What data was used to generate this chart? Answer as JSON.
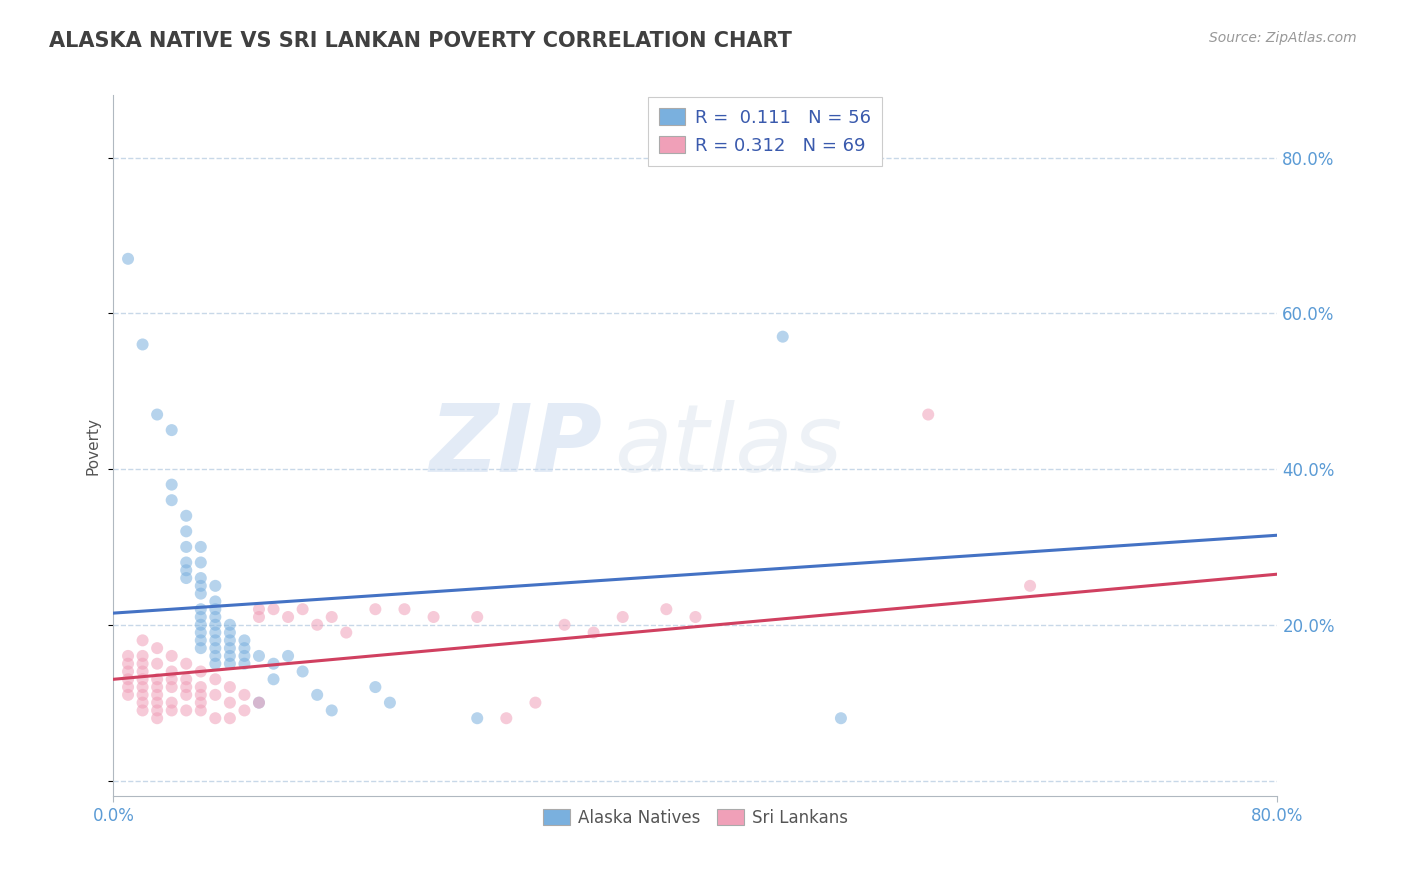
{
  "title": "ALASKA NATIVE VS SRI LANKAN POVERTY CORRELATION CHART",
  "source_text": "Source: ZipAtlas.com",
  "ylabel": "Poverty",
  "alaska_scatter": [
    [
      0.01,
      0.67
    ],
    [
      0.02,
      0.56
    ],
    [
      0.03,
      0.47
    ],
    [
      0.04,
      0.45
    ],
    [
      0.04,
      0.38
    ],
    [
      0.04,
      0.36
    ],
    [
      0.05,
      0.34
    ],
    [
      0.05,
      0.32
    ],
    [
      0.05,
      0.3
    ],
    [
      0.05,
      0.28
    ],
    [
      0.05,
      0.27
    ],
    [
      0.05,
      0.26
    ],
    [
      0.06,
      0.3
    ],
    [
      0.06,
      0.28
    ],
    [
      0.06,
      0.26
    ],
    [
      0.06,
      0.25
    ],
    [
      0.06,
      0.24
    ],
    [
      0.06,
      0.22
    ],
    [
      0.06,
      0.21
    ],
    [
      0.06,
      0.2
    ],
    [
      0.06,
      0.19
    ],
    [
      0.06,
      0.18
    ],
    [
      0.06,
      0.17
    ],
    [
      0.07,
      0.25
    ],
    [
      0.07,
      0.23
    ],
    [
      0.07,
      0.22
    ],
    [
      0.07,
      0.21
    ],
    [
      0.07,
      0.2
    ],
    [
      0.07,
      0.19
    ],
    [
      0.07,
      0.18
    ],
    [
      0.07,
      0.17
    ],
    [
      0.07,
      0.16
    ],
    [
      0.07,
      0.15
    ],
    [
      0.08,
      0.2
    ],
    [
      0.08,
      0.19
    ],
    [
      0.08,
      0.18
    ],
    [
      0.08,
      0.17
    ],
    [
      0.08,
      0.16
    ],
    [
      0.08,
      0.15
    ],
    [
      0.09,
      0.18
    ],
    [
      0.09,
      0.17
    ],
    [
      0.09,
      0.16
    ],
    [
      0.09,
      0.15
    ],
    [
      0.1,
      0.16
    ],
    [
      0.1,
      0.1
    ],
    [
      0.11,
      0.15
    ],
    [
      0.11,
      0.13
    ],
    [
      0.12,
      0.16
    ],
    [
      0.13,
      0.14
    ],
    [
      0.14,
      0.11
    ],
    [
      0.15,
      0.09
    ],
    [
      0.18,
      0.12
    ],
    [
      0.19,
      0.1
    ],
    [
      0.25,
      0.08
    ],
    [
      0.46,
      0.57
    ],
    [
      0.5,
      0.08
    ]
  ],
  "srilanka_scatter": [
    [
      0.01,
      0.16
    ],
    [
      0.01,
      0.15
    ],
    [
      0.01,
      0.14
    ],
    [
      0.01,
      0.13
    ],
    [
      0.01,
      0.12
    ],
    [
      0.01,
      0.11
    ],
    [
      0.02,
      0.18
    ],
    [
      0.02,
      0.16
    ],
    [
      0.02,
      0.15
    ],
    [
      0.02,
      0.14
    ],
    [
      0.02,
      0.13
    ],
    [
      0.02,
      0.12
    ],
    [
      0.02,
      0.11
    ],
    [
      0.02,
      0.1
    ],
    [
      0.02,
      0.09
    ],
    [
      0.03,
      0.17
    ],
    [
      0.03,
      0.15
    ],
    [
      0.03,
      0.13
    ],
    [
      0.03,
      0.12
    ],
    [
      0.03,
      0.11
    ],
    [
      0.03,
      0.1
    ],
    [
      0.03,
      0.09
    ],
    [
      0.03,
      0.08
    ],
    [
      0.04,
      0.16
    ],
    [
      0.04,
      0.14
    ],
    [
      0.04,
      0.13
    ],
    [
      0.04,
      0.12
    ],
    [
      0.04,
      0.1
    ],
    [
      0.04,
      0.09
    ],
    [
      0.05,
      0.15
    ],
    [
      0.05,
      0.13
    ],
    [
      0.05,
      0.12
    ],
    [
      0.05,
      0.11
    ],
    [
      0.05,
      0.09
    ],
    [
      0.06,
      0.14
    ],
    [
      0.06,
      0.12
    ],
    [
      0.06,
      0.11
    ],
    [
      0.06,
      0.1
    ],
    [
      0.06,
      0.09
    ],
    [
      0.07,
      0.13
    ],
    [
      0.07,
      0.11
    ],
    [
      0.07,
      0.08
    ],
    [
      0.08,
      0.12
    ],
    [
      0.08,
      0.1
    ],
    [
      0.08,
      0.08
    ],
    [
      0.09,
      0.11
    ],
    [
      0.09,
      0.09
    ],
    [
      0.1,
      0.22
    ],
    [
      0.1,
      0.21
    ],
    [
      0.1,
      0.1
    ],
    [
      0.11,
      0.22
    ],
    [
      0.12,
      0.21
    ],
    [
      0.13,
      0.22
    ],
    [
      0.14,
      0.2
    ],
    [
      0.15,
      0.21
    ],
    [
      0.16,
      0.19
    ],
    [
      0.18,
      0.22
    ],
    [
      0.2,
      0.22
    ],
    [
      0.22,
      0.21
    ],
    [
      0.25,
      0.21
    ],
    [
      0.27,
      0.08
    ],
    [
      0.29,
      0.1
    ],
    [
      0.31,
      0.2
    ],
    [
      0.33,
      0.19
    ],
    [
      0.35,
      0.21
    ],
    [
      0.38,
      0.22
    ],
    [
      0.4,
      0.21
    ],
    [
      0.56,
      0.47
    ],
    [
      0.63,
      0.25
    ]
  ],
  "alaska_line": {
    "x": [
      0.0,
      0.8
    ],
    "y": [
      0.215,
      0.315
    ]
  },
  "srilanka_line": {
    "x": [
      0.0,
      0.8
    ],
    "y": [
      0.13,
      0.265
    ]
  },
  "alaska_color": "#7ab0de",
  "srilanka_color": "#f0a0b8",
  "alaska_line_color": "#4472c4",
  "srilanka_line_color": "#d04060",
  "xlim": [
    0.0,
    0.8
  ],
  "ylim": [
    -0.02,
    0.88
  ],
  "yticks": [
    0.0,
    0.2,
    0.4,
    0.6,
    0.8
  ],
  "ytick_labels": [
    "",
    "20.0%",
    "40.0%",
    "60.0%",
    "80.0%"
  ],
  "title_color": "#404040",
  "title_fontsize": 15,
  "watermark_zip": "ZIP",
  "watermark_atlas": "atlas",
  "background_color": "#ffffff",
  "grid_color": "#c8d8e8",
  "marker_size": 75,
  "marker_alpha": 0.55,
  "line_width": 2.2
}
